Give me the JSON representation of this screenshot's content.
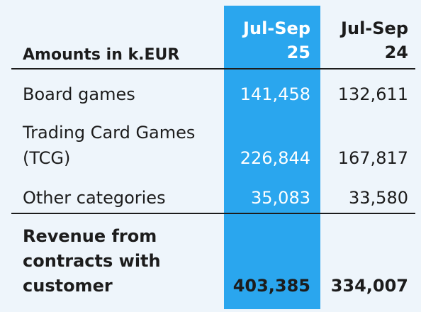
{
  "header": {
    "label": "Amounts in k.EUR",
    "col1_line1": "Jul-Sep",
    "col1_line2": "25",
    "col2_line1": "Jul-Sep",
    "col2_line2": "24"
  },
  "rows": [
    {
      "label_lines": [
        "Board games"
      ],
      "col1": "141,458",
      "col2": "132,611"
    },
    {
      "label_lines": [
        "Trading Card Games",
        "(TCG)"
      ],
      "col1": "226,844",
      "col2": "167,817"
    },
    {
      "label_lines": [
        "Other categories"
      ],
      "col1": "35,083",
      "col2": "33,580"
    }
  ],
  "total": {
    "label_lines": [
      "Revenue from",
      "contracts with",
      "customer"
    ],
    "col1": "403,385",
    "col2": "334,007"
  },
  "colors": {
    "highlight": "#2aa6ee",
    "background": "#eef5fb",
    "text": "#1c1c1c"
  }
}
